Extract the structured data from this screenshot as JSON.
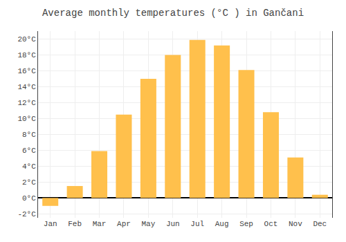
{
  "chart_data": {
    "type": "bar",
    "title": "Average monthly temperatures (°C ) in Gančani",
    "categories": [
      "Jan",
      "Feb",
      "Mar",
      "Apr",
      "May",
      "Jun",
      "Jul",
      "Aug",
      "Sep",
      "Oct",
      "Nov",
      "Dec"
    ],
    "values": [
      -1.0,
      1.5,
      5.9,
      10.5,
      15.0,
      18.0,
      19.9,
      19.2,
      16.1,
      10.8,
      5.1,
      0.4
    ],
    "color": "#FFC04C",
    "ylim": [
      -2.5,
      21
    ],
    "yticks": [
      {
        "value": -2,
        "label": "-2°C"
      },
      {
        "value": 0,
        "label": "0°C"
      },
      {
        "value": 2,
        "label": "2°C"
      },
      {
        "value": 4,
        "label": "4°C"
      },
      {
        "value": 6,
        "label": "6°C"
      },
      {
        "value": 8,
        "label": "8°C"
      },
      {
        "value": 10,
        "label": "10°C"
      },
      {
        "value": 12,
        "label": "12°C"
      },
      {
        "value": 14,
        "label": "14°C"
      },
      {
        "value": 16,
        "label": "16°C"
      },
      {
        "value": 18,
        "label": "18°C"
      },
      {
        "value": 20,
        "label": "20°C"
      }
    ],
    "grid": true
  }
}
